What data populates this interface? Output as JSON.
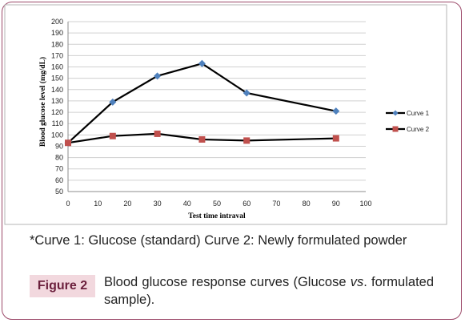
{
  "chart_data": {
    "type": "line",
    "xlabel": "Test time intraval",
    "ylabel": "Blood glucose level (mg/dL)",
    "xlim": [
      0,
      100
    ],
    "ylim": [
      50,
      200
    ],
    "x_ticks": [
      "0",
      "10",
      "20",
      "30",
      "40",
      "50",
      "60",
      "70",
      "80",
      "90",
      "100"
    ],
    "y_ticks": [
      "50",
      "60",
      "70",
      "80",
      "90",
      "100",
      "110",
      "120",
      "130",
      "140",
      "150",
      "160",
      "170",
      "180",
      "190",
      "200"
    ],
    "grid": true,
    "legend_position": "right",
    "series": [
      {
        "name": "Curve 1",
        "color": "#000000",
        "marker_color": "#4f81bd",
        "marker": "diamond",
        "x": [
          0,
          15,
          30,
          45,
          60,
          90
        ],
        "y": [
          93,
          129,
          152,
          163,
          137,
          121
        ]
      },
      {
        "name": "Curve 2",
        "color": "#000000",
        "marker_color": "#c0504d",
        "marker": "square",
        "x": [
          0,
          15,
          30,
          45,
          60,
          90
        ],
        "y": [
          93,
          99,
          101,
          96,
          95,
          97
        ]
      }
    ]
  },
  "footnote": "*Curve 1: Glucose (standard)    Curve 2: Newly formulated powder",
  "figure": {
    "label": "Figure 2",
    "caption_pre": "Blood glucose response curves (Glucose ",
    "caption_vs": "vs",
    "caption_post": ". formulated sample)."
  },
  "colors": {
    "frame": "#9c4a6a",
    "label_bg": "#f2d8de",
    "label_text": "#6b1f3c"
  }
}
